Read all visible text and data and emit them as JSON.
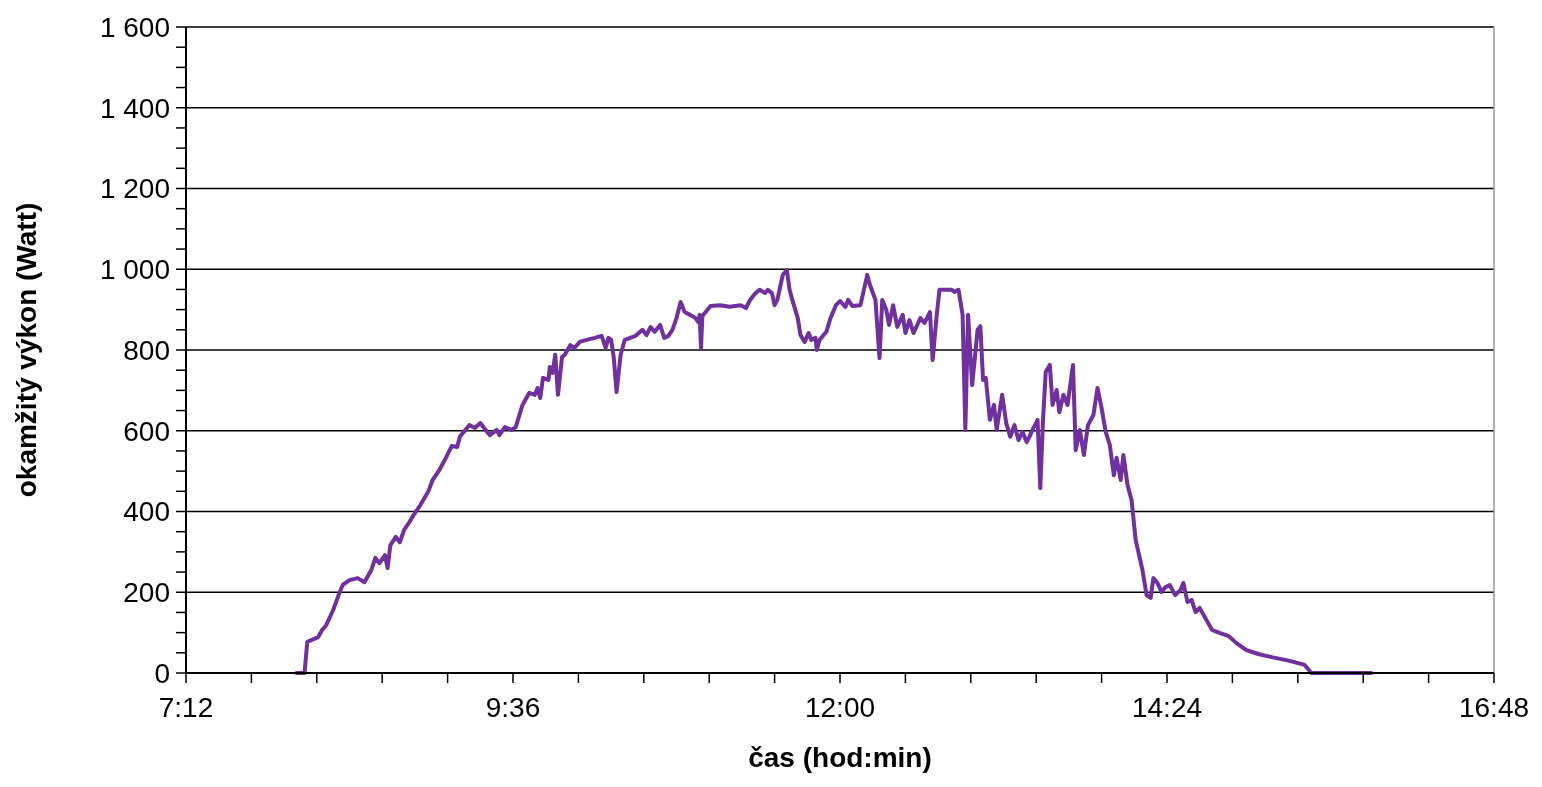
{
  "chart_data": {
    "type": "line",
    "xlabel": "čas (hod:min)",
    "ylabel": "okamžitý výkon (Watt)",
    "xlim": [
      7.2,
      16.8
    ],
    "xticks": [
      {
        "value": 7.2,
        "label": "7:12"
      },
      {
        "value": 7.68,
        "label": null
      },
      {
        "value": 8.16,
        "label": null
      },
      {
        "value": 8.64,
        "label": null
      },
      {
        "value": 9.12,
        "label": null
      },
      {
        "value": 9.6,
        "label": "9:36"
      },
      {
        "value": 10.08,
        "label": null
      },
      {
        "value": 10.56,
        "label": null
      },
      {
        "value": 11.04,
        "label": null
      },
      {
        "value": 11.52,
        "label": null
      },
      {
        "value": 12,
        "label": "12:00"
      },
      {
        "value": 12.48,
        "label": null
      },
      {
        "value": 12.96,
        "label": null
      },
      {
        "value": 13.44,
        "label": null
      },
      {
        "value": 13.92,
        "label": null
      },
      {
        "value": 14.4,
        "label": "14:24"
      },
      {
        "value": 14.88,
        "label": null
      },
      {
        "value": 15.36,
        "label": null
      },
      {
        "value": 15.84,
        "label": null
      },
      {
        "value": 16.32,
        "label": null
      },
      {
        "value": 16.8,
        "label": "16:48"
      }
    ],
    "ylim": [
      0,
      1600
    ],
    "yticks": [
      0,
      {
        "value": 50,
        "label": null
      },
      {
        "value": 100,
        "label": null
      },
      {
        "value": 150,
        "label": null
      },
      200,
      {
        "value": 250,
        "label": null
      },
      {
        "value": 300,
        "label": null
      },
      {
        "value": 350,
        "label": null
      },
      400,
      {
        "value": 450,
        "label": null
      },
      {
        "value": 500,
        "label": null
      },
      {
        "value": 550,
        "label": null
      },
      600,
      {
        "value": 650,
        "label": null
      },
      {
        "value": 700,
        "label": null
      },
      {
        "value": 750,
        "label": null
      },
      800,
      {
        "value": 850,
        "label": null
      },
      {
        "value": 900,
        "label": null
      },
      {
        "value": 950,
        "label": null
      },
      {
        "value": 1000,
        "label": "1 000"
      },
      {
        "value": 1050,
        "label": null
      },
      {
        "value": 1100,
        "label": null
      },
      {
        "value": 1150,
        "label": null
      },
      {
        "value": 1200,
        "label": "1 200"
      },
      {
        "value": 1250,
        "label": null
      },
      {
        "value": 1300,
        "label": null
      },
      {
        "value": 1350,
        "label": null
      },
      {
        "value": 1400,
        "label": "1 400"
      },
      {
        "value": 1450,
        "label": null
      },
      {
        "value": 1500,
        "label": null
      },
      {
        "value": 1550,
        "label": null
      },
      {
        "value": 1600,
        "label": "1 600"
      }
    ],
    "grid": "y",
    "marker": "none",
    "line_style": "solid",
    "series": [
      {
        "color": "#7030a0",
        "x": [
          8.01,
          8.07,
          8.09,
          8.17,
          8.2,
          8.23,
          8.28,
          8.32,
          8.35,
          8.4,
          8.46,
          8.51,
          8.56,
          8.59,
          8.62,
          8.66,
          8.68,
          8.7,
          8.74,
          8.77,
          8.8,
          8.84,
          8.87,
          8.92,
          8.98,
          9.01,
          9.06,
          9.1,
          9.15,
          9.19,
          9.21,
          9.28,
          9.32,
          9.36,
          9.43,
          9.48,
          9.5,
          9.54,
          9.59,
          9.62,
          9.67,
          9.72,
          9.76,
          9.78,
          9.8,
          9.82,
          9.86,
          9.87,
          9.89,
          9.91,
          9.93,
          9.96,
          9.98,
          10.02,
          10.05,
          10.09,
          10.14,
          10.2,
          10.25,
          10.28,
          10.3,
          10.32,
          10.34,
          10.36,
          10.39,
          10.42,
          10.46,
          10.5,
          10.55,
          10.58,
          10.61,
          10.64,
          10.68,
          10.71,
          10.74,
          10.77,
          10.8,
          10.83,
          10.86,
          10.9,
          10.94,
          10.96,
          10.97,
          10.98,
          10.99,
          11.05,
          11.12,
          11.19,
          11.27,
          11.31,
          11.34,
          11.38,
          11.41,
          11.45,
          11.47,
          11.5,
          11.52,
          11.54,
          11.58,
          11.61,
          11.63,
          11.65,
          11.69,
          11.71,
          11.74,
          11.77,
          11.79,
          11.82,
          11.83,
          11.85,
          11.88,
          11.9,
          11.93,
          11.97,
          12.0,
          12.04,
          12.06,
          12.09,
          12.15,
          12.2,
          12.22,
          12.26,
          12.29,
          12.31,
          12.34,
          12.36,
          12.39,
          12.42,
          12.46,
          12.48,
          12.51,
          12.54,
          12.59,
          12.62,
          12.66,
          12.68,
          12.71,
          12.73,
          12.77,
          12.82,
          12.84,
          12.87,
          12.9,
          12.92,
          12.94,
          12.97,
          13.01,
          13.03,
          13.05,
          13.07,
          13.1,
          13.13,
          13.15,
          13.19,
          13.22,
          13.25,
          13.28,
          13.31,
          13.34,
          13.37,
          13.39,
          13.42,
          13.45,
          13.47,
          13.49,
          13.51,
          13.54,
          13.56,
          13.59,
          13.61,
          13.64,
          13.67,
          13.71,
          13.73,
          13.76,
          13.79,
          13.82,
          13.86,
          13.89,
          13.92,
          13.95,
          13.98,
          14.01,
          14.03,
          14.06,
          14.08,
          14.11,
          14.14,
          14.17,
          14.22,
          14.25,
          14.28,
          14.3,
          14.33,
          14.36,
          14.39,
          14.42,
          14.46,
          14.5,
          14.52,
          14.55,
          14.58,
          14.61,
          14.64,
          14.69,
          14.73,
          14.79,
          14.85,
          14.91,
          14.98,
          15.07,
          15.16,
          15.3,
          15.41,
          15.46,
          15.52,
          15.9
        ],
        "values": [
          0,
          0,
          77,
          89,
          107,
          119,
          156,
          193,
          218,
          230,
          235,
          225,
          255,
          285,
          272,
          292,
          260,
          317,
          337,
          324,
          354,
          374,
          391,
          416,
          451,
          478,
          503,
          528,
          562,
          560,
          585,
          614,
          607,
          619,
          589,
          602,
          589,
          609,
          602,
          609,
          664,
          694,
          689,
          706,
          681,
          731,
          726,
          758,
          743,
          788,
          689,
          783,
          788,
          812,
          805,
          820,
          825,
          830,
          835,
          805,
          830,
          825,
          780,
          696,
          788,
          825,
          830,
          835,
          850,
          837,
          857,
          845,
          862,
          830,
          835,
          850,
          879,
          919,
          894,
          887,
          879,
          869,
          887,
          805,
          884,
          909,
          911,
          907,
          911,
          904,
          924,
          941,
          949,
          941,
          949,
          941,
          911,
          924,
          986,
          998,
          949,
          924,
          879,
          837,
          820,
          842,
          825,
          830,
          800,
          825,
          837,
          845,
          879,
          911,
          921,
          907,
          924,
          909,
          911,
          986,
          961,
          924,
          780,
          924,
          899,
          862,
          911,
          857,
          887,
          842,
          874,
          842,
          879,
          867,
          894,
          775,
          887,
          949,
          949,
          949,
          944,
          949,
          887,
          602,
          887,
          713,
          850,
          859,
          726,
          731,
          627,
          664,
          602,
          689,
          619,
          585,
          614,
          577,
          597,
          572,
          585,
          607,
          627,
          458,
          627,
          746,
          763,
          664,
          701,
          646,
          689,
          664,
          763,
          552,
          602,
          540,
          614,
          639,
          706,
          656,
          597,
          565,
          490,
          533,
          478,
          540,
          466,
          428,
          329,
          255,
          193,
          186,
          235,
          223,
          201,
          213,
          218,
          193,
          206,
          223,
          176,
          181,
          151,
          161,
          131,
          107,
          99,
          92,
          74,
          57,
          47,
          40,
          30,
          20,
          0,
          0,
          0
        ]
      }
    ]
  }
}
